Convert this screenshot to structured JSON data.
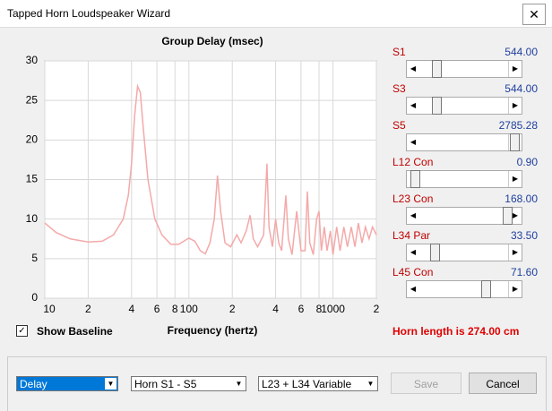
{
  "window": {
    "title": "Tapped Horn Loudspeaker Wizard"
  },
  "chart_data": {
    "type": "line",
    "title": "Group Delay (msec)",
    "x_label": "Frequency (hertz)",
    "color": "#f4a9a9",
    "log_x": true,
    "grid": true,
    "xlim": [
      10,
      2000
    ],
    "ylim": [
      0,
      30
    ],
    "yticks": [
      0,
      5,
      10,
      15,
      20,
      25,
      30
    ],
    "xticks": [
      10,
      {
        "value": 20,
        "label": "2"
      },
      {
        "value": 40,
        "label": "4"
      },
      {
        "value": 60,
        "label": "6"
      },
      {
        "value": 80,
        "label": "8"
      },
      100,
      {
        "value": 200,
        "label": "2"
      },
      {
        "value": 400,
        "label": "4"
      },
      {
        "value": 600,
        "label": "6"
      },
      {
        "value": 800,
        "label": "8"
      },
      1000,
      {
        "value": 2000,
        "label": "2"
      }
    ],
    "x": [
      10,
      12,
      15,
      20,
      25,
      30,
      35,
      38,
      40,
      42,
      44,
      46,
      48,
      52,
      58,
      65,
      75,
      85,
      100,
      110,
      120,
      130,
      140,
      150,
      158,
      166,
      178,
      195,
      215,
      230,
      250,
      266,
      280,
      300,
      330,
      348,
      360,
      380,
      400,
      420,
      440,
      471,
      490,
      520,
      560,
      600,
      640,
      664,
      690,
      730,
      770,
      800,
      830,
      870,
      910,
      960,
      1000,
      1060,
      1120,
      1190,
      1260,
      1340,
      1420,
      1500,
      1590,
      1680,
      1780,
      1880,
      2000
    ],
    "values": [
      9.5,
      8.3,
      7.5,
      7.1,
      7.2,
      8,
      10,
      13,
      17,
      23,
      26.8,
      26,
      22,
      15,
      10,
      8,
      6.8,
      6.8,
      7.6,
      7.2,
      6,
      5.6,
      7,
      10,
      15.5,
      11,
      7,
      6.5,
      8,
      7,
      8.5,
      10.5,
      7.5,
      6.5,
      8,
      17,
      9,
      6.5,
      10,
      7,
      6,
      13,
      7.5,
      5.5,
      11,
      6,
      6,
      13.5,
      7,
      5.5,
      10,
      11,
      6,
      9,
      6,
      8.5,
      5.5,
      9,
      6,
      9,
      6.5,
      9,
      6.5,
      9.5,
      7,
      9,
      7.5,
      9,
      8
    ]
  },
  "sliders": [
    {
      "label": "S1",
      "value": "544.00"
    },
    {
      "label": "S3",
      "value": "544.00"
    },
    {
      "label": "S5",
      "value": "2785.28"
    },
    {
      "label": "L12 Con",
      "value": "0.90"
    },
    {
      "label": "L23 Con",
      "value": "168.00"
    },
    {
      "label": "L34 Par",
      "value": "33.50"
    },
    {
      "label": "L45 Con",
      "value": "71.60"
    }
  ],
  "show_baseline": "Show Baseline",
  "horn_length": "Horn length is 274.00 cm",
  "dropdowns": [
    "Delay",
    "Horn S1 - S5",
    "L23 + L34 Variable"
  ],
  "buttons": {
    "save": "Save",
    "cancel": "Cancel"
  }
}
